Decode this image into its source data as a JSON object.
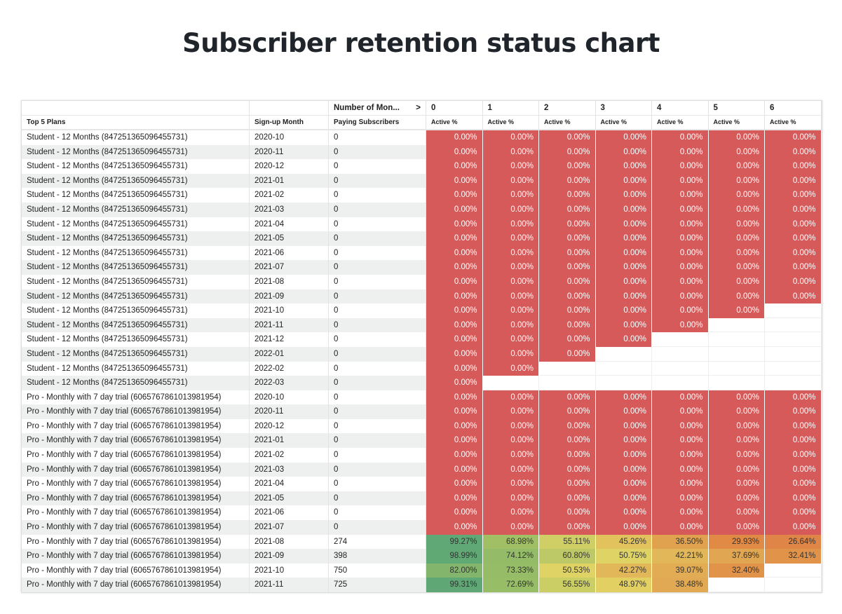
{
  "title": "Subscriber retention status chart",
  "chart_data": {
    "type": "table",
    "pivot_label": "Number of Mon...",
    "month_columns": [
      "0",
      "1",
      "2",
      "3",
      "4",
      "5",
      "6"
    ],
    "headers": [
      "Top 5 Plans",
      "Sign-up Month",
      "Paying Subscribers"
    ],
    "value_header": "Active %",
    "color_scale": {
      "0": "#d65a5a",
      "30": "#e08a45",
      "50": "#e2d465",
      "70": "#9dbf66",
      "100": "#5ea775"
    },
    "rows": [
      {
        "plan": "Student - 12 Months (847251365096455731)",
        "month": "2020-10",
        "paying": "0",
        "values": [
          "0.00%",
          "0.00%",
          "0.00%",
          "0.00%",
          "0.00%",
          "0.00%",
          "0.00%"
        ]
      },
      {
        "plan": "Student - 12 Months (847251365096455731)",
        "month": "2020-11",
        "paying": "0",
        "values": [
          "0.00%",
          "0.00%",
          "0.00%",
          "0.00%",
          "0.00%",
          "0.00%",
          "0.00%"
        ]
      },
      {
        "plan": "Student - 12 Months (847251365096455731)",
        "month": "2020-12",
        "paying": "0",
        "values": [
          "0.00%",
          "0.00%",
          "0.00%",
          "0.00%",
          "0.00%",
          "0.00%",
          "0.00%"
        ]
      },
      {
        "plan": "Student - 12 Months (847251365096455731)",
        "month": "2021-01",
        "paying": "0",
        "values": [
          "0.00%",
          "0.00%",
          "0.00%",
          "0.00%",
          "0.00%",
          "0.00%",
          "0.00%"
        ]
      },
      {
        "plan": "Student - 12 Months (847251365096455731)",
        "month": "2021-02",
        "paying": "0",
        "values": [
          "0.00%",
          "0.00%",
          "0.00%",
          "0.00%",
          "0.00%",
          "0.00%",
          "0.00%"
        ]
      },
      {
        "plan": "Student - 12 Months (847251365096455731)",
        "month": "2021-03",
        "paying": "0",
        "values": [
          "0.00%",
          "0.00%",
          "0.00%",
          "0.00%",
          "0.00%",
          "0.00%",
          "0.00%"
        ]
      },
      {
        "plan": "Student - 12 Months (847251365096455731)",
        "month": "2021-04",
        "paying": "0",
        "values": [
          "0.00%",
          "0.00%",
          "0.00%",
          "0.00%",
          "0.00%",
          "0.00%",
          "0.00%"
        ]
      },
      {
        "plan": "Student - 12 Months (847251365096455731)",
        "month": "2021-05",
        "paying": "0",
        "values": [
          "0.00%",
          "0.00%",
          "0.00%",
          "0.00%",
          "0.00%",
          "0.00%",
          "0.00%"
        ]
      },
      {
        "plan": "Student - 12 Months (847251365096455731)",
        "month": "2021-06",
        "paying": "0",
        "values": [
          "0.00%",
          "0.00%",
          "0.00%",
          "0.00%",
          "0.00%",
          "0.00%",
          "0.00%"
        ]
      },
      {
        "plan": "Student - 12 Months (847251365096455731)",
        "month": "2021-07",
        "paying": "0",
        "values": [
          "0.00%",
          "0.00%",
          "0.00%",
          "0.00%",
          "0.00%",
          "0.00%",
          "0.00%"
        ]
      },
      {
        "plan": "Student - 12 Months (847251365096455731)",
        "month": "2021-08",
        "paying": "0",
        "values": [
          "0.00%",
          "0.00%",
          "0.00%",
          "0.00%",
          "0.00%",
          "0.00%",
          "0.00%"
        ]
      },
      {
        "plan": "Student - 12 Months (847251365096455731)",
        "month": "2021-09",
        "paying": "0",
        "values": [
          "0.00%",
          "0.00%",
          "0.00%",
          "0.00%",
          "0.00%",
          "0.00%",
          "0.00%"
        ]
      },
      {
        "plan": "Student - 12 Months (847251365096455731)",
        "month": "2021-10",
        "paying": "0",
        "values": [
          "0.00%",
          "0.00%",
          "0.00%",
          "0.00%",
          "0.00%",
          "0.00%"
        ]
      },
      {
        "plan": "Student - 12 Months (847251365096455731)",
        "month": "2021-11",
        "paying": "0",
        "values": [
          "0.00%",
          "0.00%",
          "0.00%",
          "0.00%",
          "0.00%"
        ]
      },
      {
        "plan": "Student - 12 Months (847251365096455731)",
        "month": "2021-12",
        "paying": "0",
        "values": [
          "0.00%",
          "0.00%",
          "0.00%",
          "0.00%"
        ]
      },
      {
        "plan": "Student - 12 Months (847251365096455731)",
        "month": "2022-01",
        "paying": "0",
        "values": [
          "0.00%",
          "0.00%",
          "0.00%"
        ]
      },
      {
        "plan": "Student - 12 Months (847251365096455731)",
        "month": "2022-02",
        "paying": "0",
        "values": [
          "0.00%",
          "0.00%"
        ]
      },
      {
        "plan": "Student - 12 Months (847251365096455731)",
        "month": "2022-03",
        "paying": "0",
        "values": [
          "0.00%"
        ]
      },
      {
        "plan": "Pro - Monthly with 7 day trial (606576786101398195​4)",
        "month": "2020-10",
        "paying": "0",
        "values": [
          "0.00%",
          "0.00%",
          "0.00%",
          "0.00%",
          "0.00%",
          "0.00%",
          "0.00%"
        ]
      },
      {
        "plan": "Pro - Monthly with 7 day trial (6065767861013981954)",
        "month": "2020-11",
        "paying": "0",
        "values": [
          "0.00%",
          "0.00%",
          "0.00%",
          "0.00%",
          "0.00%",
          "0.00%",
          "0.00%"
        ]
      },
      {
        "plan": "Pro - Monthly with 7 day trial (6065767861013981954)",
        "month": "2020-12",
        "paying": "0",
        "values": [
          "0.00%",
          "0.00%",
          "0.00%",
          "0.00%",
          "0.00%",
          "0.00%",
          "0.00%"
        ]
      },
      {
        "plan": "Pro - Monthly with 7 day trial (6065767861013981954)",
        "month": "2021-01",
        "paying": "0",
        "values": [
          "0.00%",
          "0.00%",
          "0.00%",
          "0.00%",
          "0.00%",
          "0.00%",
          "0.00%"
        ]
      },
      {
        "plan": "Pro - Monthly with 7 day trial (6065767861013981954)",
        "month": "2021-02",
        "paying": "0",
        "values": [
          "0.00%",
          "0.00%",
          "0.00%",
          "0.00%",
          "0.00%",
          "0.00%",
          "0.00%"
        ]
      },
      {
        "plan": "Pro - Monthly with 7 day trial (6065767861013981954)",
        "month": "2021-03",
        "paying": "0",
        "values": [
          "0.00%",
          "0.00%",
          "0.00%",
          "0.00%",
          "0.00%",
          "0.00%",
          "0.00%"
        ]
      },
      {
        "plan": "Pro - Monthly with 7 day trial (6065767861013981954)",
        "month": "2021-04",
        "paying": "0",
        "values": [
          "0.00%",
          "0.00%",
          "0.00%",
          "0.00%",
          "0.00%",
          "0.00%",
          "0.00%"
        ]
      },
      {
        "plan": "Pro - Monthly with 7 day trial (6065767861013981954)",
        "month": "2021-05",
        "paying": "0",
        "values": [
          "0.00%",
          "0.00%",
          "0.00%",
          "0.00%",
          "0.00%",
          "0.00%",
          "0.00%"
        ]
      },
      {
        "plan": "Pro - Monthly with 7 day trial (6065767861013981954)",
        "month": "2021-06",
        "paying": "0",
        "values": [
          "0.00%",
          "0.00%",
          "0.00%",
          "0.00%",
          "0.00%",
          "0.00%",
          "0.00%"
        ]
      },
      {
        "plan": "Pro - Monthly with 7 day trial (6065767861013981954)",
        "month": "2021-07",
        "paying": "0",
        "values": [
          "0.00%",
          "0.00%",
          "0.00%",
          "0.00%",
          "0.00%",
          "0.00%",
          "0.00%"
        ]
      },
      {
        "plan": "Pro - Monthly with 7 day trial (6065767861013981954)",
        "month": "2021-08",
        "paying": "274",
        "values": [
          "99.27%",
          "68.98%",
          "55.11%",
          "45.26%",
          "36.50%",
          "29.93%",
          "26.64%"
        ]
      },
      {
        "plan": "Pro - Monthly with 7 day trial (6065767861013981954)",
        "month": "2021-09",
        "paying": "398",
        "values": [
          "98.99%",
          "74.12%",
          "60.80%",
          "50.75%",
          "42.21%",
          "37.69%",
          "32.41%"
        ]
      },
      {
        "plan": "Pro - Monthly with 7 day trial (6065767861013981954)",
        "month": "2021-10",
        "paying": "750",
        "values": [
          "82.00%",
          "73.33%",
          "50.53%",
          "42.27%",
          "39.07%",
          "32.40%"
        ]
      },
      {
        "plan": "Pro - Monthly with 7 day trial (6065767861013981954)",
        "month": "2021-11",
        "paying": "725",
        "values": [
          "99.31%",
          "72.69%",
          "56.55%",
          "48.97%",
          "38.48%"
        ]
      }
    ]
  }
}
